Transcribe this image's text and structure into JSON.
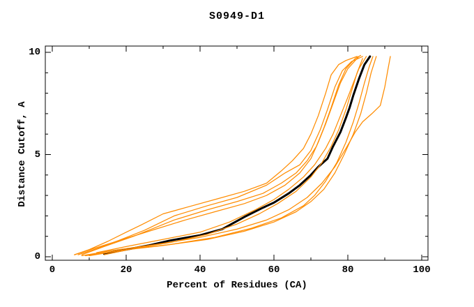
{
  "title": "S0949-D1",
  "chart_data": {
    "type": "line",
    "title": "S0949-D1",
    "xlabel": "Percent of Residues (CA)",
    "ylabel": "Distance Cutoff, A",
    "xlim": [
      0,
      100
    ],
    "ylim": [
      0,
      10
    ],
    "grid": false,
    "legend": "none",
    "x_major_ticks": [
      0,
      20,
      40,
      60,
      80,
      100
    ],
    "x_minor_ticks": [
      10,
      30,
      50,
      70,
      90
    ],
    "y_major_ticks": [
      0,
      5,
      10
    ],
    "y_minor_ticks": [
      1,
      2,
      3,
      4,
      6,
      7,
      8,
      9
    ],
    "x_tick_labels": [
      "0",
      "20",
      "40",
      "60",
      "80",
      "100"
    ],
    "y_tick_labels": [
      "0",
      "5",
      "10"
    ],
    "colors": {
      "black_curve": "#000000",
      "orange_curves": "#ff8c00"
    },
    "series": [
      {
        "name": "black-curve",
        "color": "#000000",
        "width": 3,
        "points": [
          [
            14,
            0.15
          ],
          [
            20,
            0.35
          ],
          [
            26,
            0.55
          ],
          [
            32,
            0.8
          ],
          [
            40,
            1.05
          ],
          [
            46,
            1.35
          ],
          [
            52,
            1.95
          ],
          [
            57,
            2.4
          ],
          [
            60,
            2.65
          ],
          [
            64,
            3.1
          ],
          [
            67,
            3.5
          ],
          [
            70,
            4.0
          ],
          [
            72,
            4.4
          ],
          [
            74.5,
            4.8
          ],
          [
            76,
            5.4
          ],
          [
            78,
            6.1
          ],
          [
            79.5,
            6.8
          ],
          [
            80.5,
            7.3
          ],
          [
            81.5,
            7.9
          ],
          [
            83,
            8.7
          ],
          [
            84.5,
            9.4
          ],
          [
            86,
            9.8
          ]
        ]
      },
      {
        "name": "orange-curve-1",
        "color": "#ff8c00",
        "width": 1.25,
        "points": [
          [
            6,
            0.1
          ],
          [
            10,
            0.35
          ],
          [
            15,
            0.75
          ],
          [
            20,
            1.2
          ],
          [
            24,
            1.55
          ],
          [
            30,
            2.1
          ],
          [
            37,
            2.45
          ],
          [
            45,
            2.85
          ],
          [
            52,
            3.2
          ],
          [
            58,
            3.6
          ],
          [
            62,
            4.2
          ],
          [
            65,
            4.7
          ],
          [
            68,
            5.3
          ],
          [
            70,
            6.0
          ],
          [
            72,
            6.9
          ],
          [
            74,
            8.0
          ],
          [
            75.5,
            8.9
          ],
          [
            77.5,
            9.4
          ],
          [
            79.5,
            9.6
          ],
          [
            82.5,
            9.8
          ]
        ]
      },
      {
        "name": "orange-curve-2",
        "color": "#ff8c00",
        "width": 1.25,
        "points": [
          [
            6,
            0.1
          ],
          [
            12,
            0.45
          ],
          [
            20,
            0.9
          ],
          [
            28,
            1.35
          ],
          [
            36,
            1.8
          ],
          [
            44,
            2.2
          ],
          [
            52,
            2.6
          ],
          [
            58,
            3.0
          ],
          [
            63,
            3.5
          ],
          [
            67,
            4.1
          ],
          [
            70,
            4.8
          ],
          [
            72,
            5.6
          ],
          [
            74,
            6.5
          ],
          [
            76,
            7.5
          ],
          [
            78,
            8.5
          ],
          [
            80,
            9.2
          ],
          [
            83,
            9.8
          ]
        ]
      },
      {
        "name": "orange-curve-3",
        "color": "#ff8c00",
        "width": 1.25,
        "points": [
          [
            7,
            0.1
          ],
          [
            12,
            0.4
          ],
          [
            18,
            0.8
          ],
          [
            25,
            1.3
          ],
          [
            33,
            2.0
          ],
          [
            42,
            2.5
          ],
          [
            50,
            2.9
          ],
          [
            58,
            3.5
          ],
          [
            63,
            4.1
          ],
          [
            67,
            4.5
          ],
          [
            70,
            5.2
          ],
          [
            72.5,
            6.2
          ],
          [
            74.5,
            7.2
          ],
          [
            76.5,
            8.3
          ],
          [
            78.5,
            9.1
          ],
          [
            81,
            9.55
          ],
          [
            84,
            9.8
          ]
        ]
      },
      {
        "name": "orange-curve-4",
        "color": "#ff8c00",
        "width": 1.25,
        "points": [
          [
            8,
            0.1
          ],
          [
            14,
            0.5
          ],
          [
            22,
            1.0
          ],
          [
            33,
            1.8
          ],
          [
            42,
            2.3
          ],
          [
            50,
            2.7
          ],
          [
            57,
            3.1
          ],
          [
            62,
            3.6
          ],
          [
            66,
            4.1
          ],
          [
            69,
            4.7
          ],
          [
            71.5,
            5.4
          ],
          [
            73.5,
            6.3
          ],
          [
            75.5,
            7.3
          ],
          [
            77.5,
            8.4
          ],
          [
            79.5,
            9.2
          ],
          [
            82,
            9.7
          ],
          [
            83.5,
            9.85
          ]
        ]
      },
      {
        "name": "orange-curve-5",
        "color": "#ff8c00",
        "width": 1.25,
        "points": [
          [
            12,
            0.2
          ],
          [
            20,
            0.5
          ],
          [
            30,
            0.85
          ],
          [
            40,
            1.2
          ],
          [
            48,
            1.7
          ],
          [
            55,
            2.3
          ],
          [
            60,
            2.8
          ],
          [
            64,
            3.3
          ],
          [
            68,
            3.9
          ],
          [
            71,
            4.5
          ],
          [
            74,
            5.3
          ],
          [
            76,
            6.0
          ],
          [
            78,
            6.9
          ],
          [
            80,
            7.8
          ],
          [
            81.5,
            8.5
          ],
          [
            83,
            9.2
          ],
          [
            85,
            9.8
          ]
        ]
      },
      {
        "name": "orange-curve-6",
        "color": "#ff8c00",
        "width": 1.25,
        "points": [
          [
            14,
            0.1
          ],
          [
            22,
            0.4
          ],
          [
            32,
            0.7
          ],
          [
            42,
            1.1
          ],
          [
            50,
            1.6
          ],
          [
            56,
            2.1
          ],
          [
            61,
            2.6
          ],
          [
            66,
            3.2
          ],
          [
            70,
            3.9
          ],
          [
            73,
            4.6
          ],
          [
            75.5,
            5.4
          ],
          [
            77.5,
            6.2
          ],
          [
            79.5,
            7.2
          ],
          [
            81,
            8.1
          ],
          [
            82.5,
            9.0
          ],
          [
            84,
            9.7
          ]
        ]
      },
      {
        "name": "orange-curve-7",
        "color": "#ff8c00",
        "width": 1.25,
        "points": [
          [
            10,
            0.05
          ],
          [
            20,
            0.35
          ],
          [
            32,
            0.6
          ],
          [
            44,
            0.95
          ],
          [
            54,
            1.4
          ],
          [
            62,
            1.9
          ],
          [
            68,
            2.5
          ],
          [
            71,
            3.0
          ],
          [
            74,
            3.7
          ],
          [
            77,
            4.6
          ],
          [
            79.5,
            5.6
          ],
          [
            81.5,
            6.6
          ],
          [
            83,
            7.5
          ],
          [
            84.5,
            8.5
          ],
          [
            85.8,
            9.3
          ],
          [
            86.8,
            9.8
          ]
        ]
      },
      {
        "name": "orange-curve-8",
        "color": "#ff8c00",
        "width": 1.25,
        "points": [
          [
            9,
            0.05
          ],
          [
            18,
            0.3
          ],
          [
            30,
            0.55
          ],
          [
            42,
            0.85
          ],
          [
            52,
            1.25
          ],
          [
            60,
            1.7
          ],
          [
            66,
            2.2
          ],
          [
            70,
            2.7
          ],
          [
            73.5,
            3.3
          ],
          [
            76.5,
            4.1
          ],
          [
            79,
            5.0
          ],
          [
            81.5,
            6.0
          ],
          [
            83.5,
            7.0
          ],
          [
            85,
            8.0
          ],
          [
            86.3,
            9.0
          ],
          [
            87.7,
            9.8
          ]
        ]
      },
      {
        "name": "orange-curve-9",
        "color": "#ff8c00",
        "width": 1.25,
        "points": [
          [
            8,
            0.05
          ],
          [
            16,
            0.3
          ],
          [
            28,
            0.6
          ],
          [
            40,
            0.95
          ],
          [
            50,
            1.35
          ],
          [
            58,
            1.8
          ],
          [
            64,
            2.3
          ],
          [
            69,
            2.9
          ],
          [
            73,
            3.6
          ],
          [
            76.5,
            4.4
          ],
          [
            79.5,
            5.3
          ],
          [
            82,
            6.1
          ],
          [
            84,
            6.6
          ],
          [
            86.5,
            7.0
          ],
          [
            88.8,
            7.4
          ],
          [
            90,
            8.3
          ],
          [
            90.8,
            9.1
          ],
          [
            91.5,
            9.8
          ]
        ]
      }
    ]
  }
}
